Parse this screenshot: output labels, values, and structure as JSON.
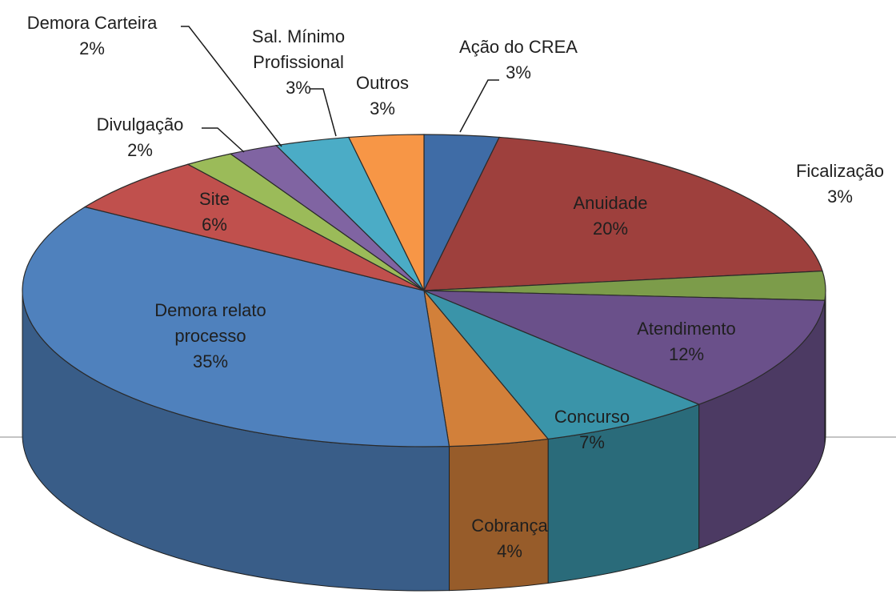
{
  "chart_data": {
    "type": "pie",
    "categories": [
      "Ação do CREA",
      "Anuidade",
      "Ficalização",
      "Atendimento",
      "Concurso",
      "Cobrança",
      "Demora relato processo",
      "Site",
      "Divulgação",
      "Demora Carteira",
      "Sal. Mínimo Profissional",
      "Outros"
    ],
    "values": [
      3,
      20,
      3,
      12,
      7,
      4,
      35,
      6,
      2,
      2,
      3,
      3
    ],
    "value_labels": [
      "3%",
      "20%",
      "3%",
      "12%",
      "7%",
      "4%",
      "35%",
      "6%",
      "2%",
      "2%",
      "3%",
      "3%"
    ],
    "colors": [
      "#3f6ca6",
      "#9e403d",
      "#7c9c4a",
      "#6a508a",
      "#3a94a9",
      "#d2803a",
      "#4f81bd",
      "#c0504d",
      "#9bbb59",
      "#8064a2",
      "#4bacc6",
      "#f79646"
    ]
  }
}
